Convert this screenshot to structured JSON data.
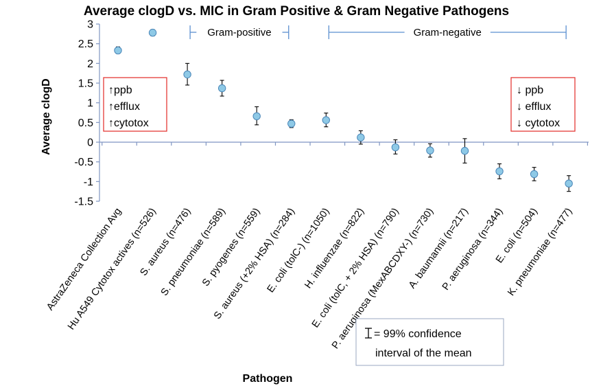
{
  "chart_data": {
    "type": "scatter",
    "title": "Average clogD vs. MIC in Gram Positive & Gram Negative Pathogens",
    "xlabel": "Pathogen",
    "ylabel": "Average clogD",
    "ylim": [
      -1.5,
      3
    ],
    "yticks": [
      "3",
      "2.5",
      "2",
      "1.5",
      "1",
      "0.5",
      "0",
      "-0.5",
      "-1",
      "-1.5"
    ],
    "grid": false,
    "marker_color": "#8ec9e6",
    "points": [
      {
        "label": "AstraZeneca Collection Avg",
        "y": 2.33,
        "ci": [
          2.25,
          2.42
        ]
      },
      {
        "label": "Hu A549 Cytotox actives (n=526)",
        "y": 2.78,
        "ci": [
          2.7,
          2.86
        ]
      },
      {
        "label": "S. aureus (n=476)",
        "y": 1.72,
        "ci": [
          1.45,
          2.0
        ]
      },
      {
        "label": "S. pneumoniae (n=589)",
        "y": 1.37,
        "ci": [
          1.17,
          1.57
        ]
      },
      {
        "label": "S. pyogenes (n=559)",
        "y": 0.66,
        "ci": [
          0.44,
          0.9
        ]
      },
      {
        "label": "S. aureus (+2% HSA) (n=284)",
        "y": 0.47,
        "ci": [
          0.37,
          0.57
        ]
      },
      {
        "label": "E. coli (tolC-) (n=1050)",
        "y": 0.56,
        "ci": [
          0.39,
          0.74
        ]
      },
      {
        "label": "H. influenzae (n=822)",
        "y": 0.12,
        "ci": [
          -0.05,
          0.29
        ]
      },
      {
        "label": "E. coli (tolC, + 2% HSA) (n=790)",
        "y": -0.13,
        "ci": [
          -0.3,
          0.06
        ]
      },
      {
        "label": "P. aeruginosa (MexABCDXY-) (n=730)",
        "y": -0.21,
        "ci": [
          -0.38,
          -0.04
        ]
      },
      {
        "label": "A. baumannii (n=217)",
        "y": -0.22,
        "ci": [
          -0.53,
          0.09
        ]
      },
      {
        "label": "P. aeruginosa (n=344)",
        "y": -0.74,
        "ci": [
          -0.93,
          -0.55
        ]
      },
      {
        "label": "E. coli (n=504)",
        "y": -0.81,
        "ci": [
          -0.98,
          -0.64
        ]
      },
      {
        "label": "K. pneumoniae (n=477)",
        "y": -1.05,
        "ci": [
          -1.25,
          -0.85
        ]
      }
    ],
    "brackets": [
      {
        "label": "Gram-positive",
        "from": 2,
        "to": 5
      },
      {
        "label": "Gram-negative",
        "from": 6,
        "to": 13
      }
    ],
    "annotations": {
      "left_box": [
        "↑ppb",
        "↑efflux",
        "↑cytotox"
      ],
      "right_box": [
        "↓ ppb",
        "↓ efflux",
        "↓ cytotox"
      ],
      "legend": {
        "symbol": "I",
        "line1": " = 99% confidence",
        "line2": "interval of the mean"
      }
    }
  }
}
